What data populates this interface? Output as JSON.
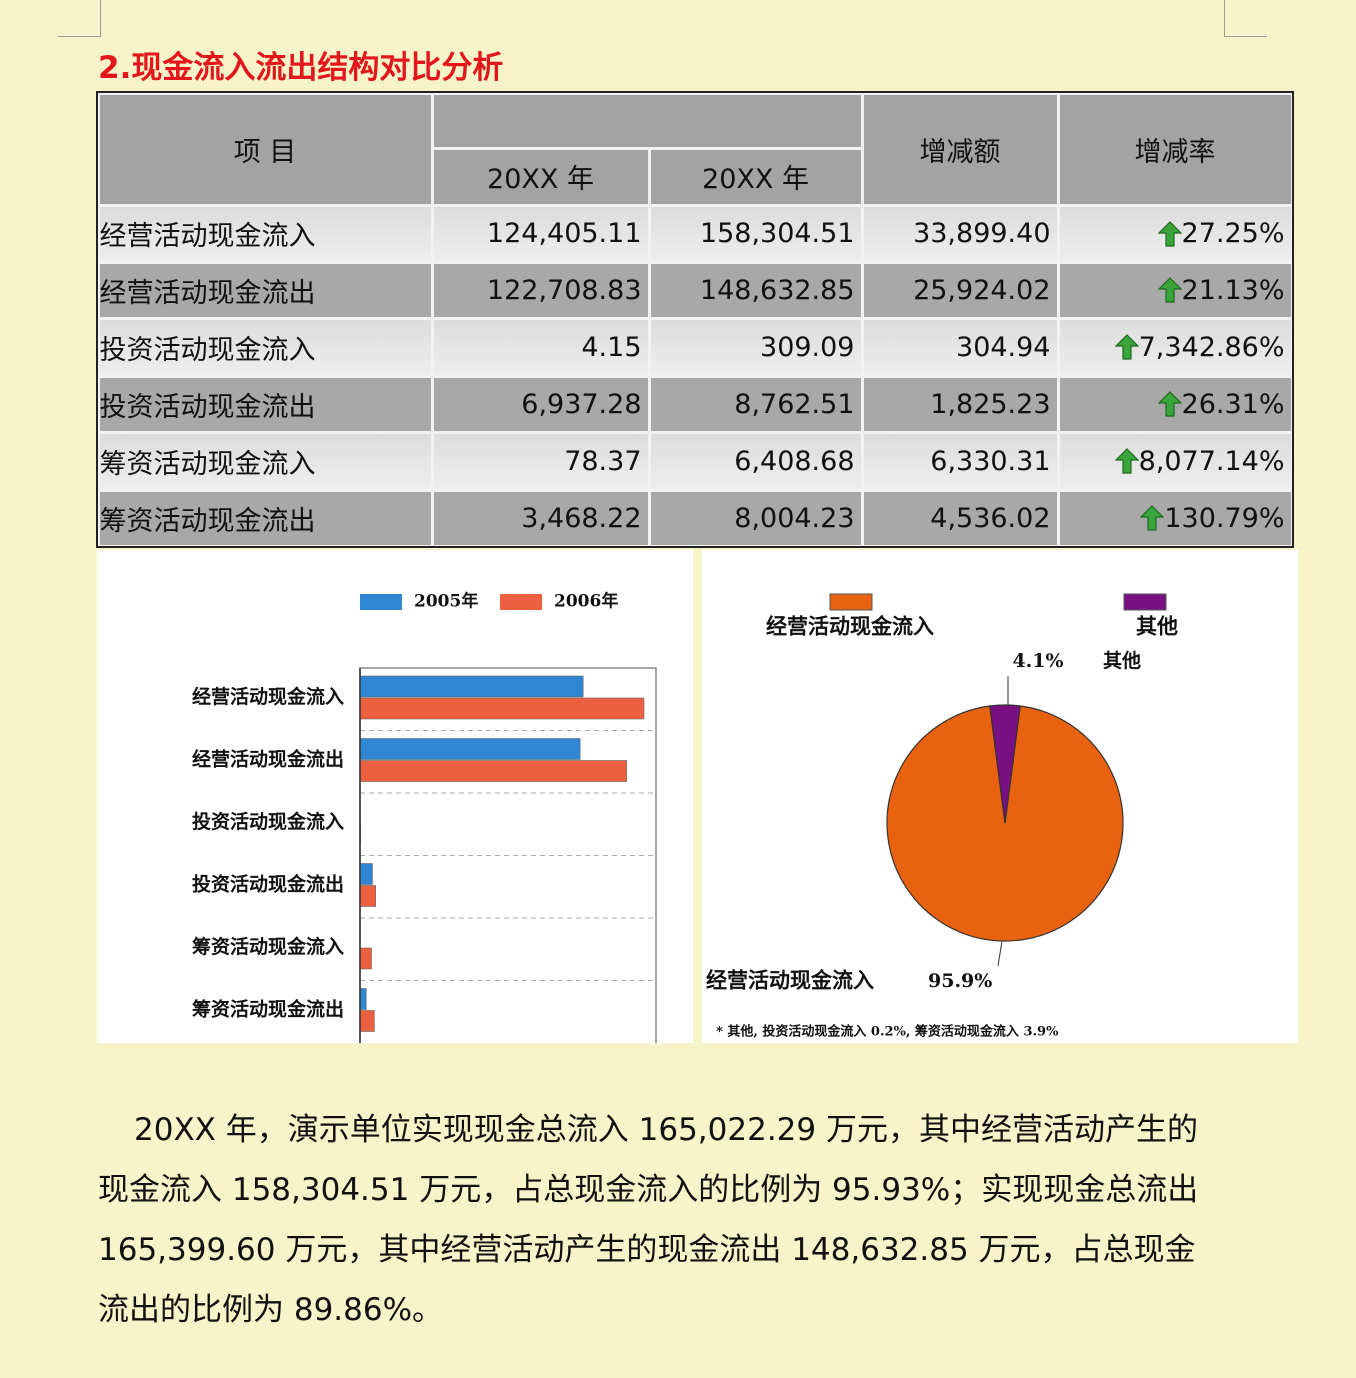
{
  "title": "2.现金流入流出结构对比分析",
  "table": {
    "header": {
      "item": "项 目",
      "years": [
        "20XX 年",
        "20XX 年"
      ],
      "change": "增减额",
      "rate": "增减率"
    },
    "rows": [
      [
        "经营活动现金流入",
        "124,405.11",
        "158,304.51",
        "33,899.40",
        "27.25%"
      ],
      [
        "经营活动现金流出",
        "122,708.83",
        "148,632.85",
        "25,924.02",
        "21.13%"
      ],
      [
        "投资活动现金流入",
        "4.15",
        "309.09",
        "304.94",
        "7,342.86%"
      ],
      [
        "投资活动现金流出",
        "6,937.28",
        "8,762.51",
        "1,825.23",
        "26.31%"
      ],
      [
        "筹资活动现金流入",
        "78.37",
        "6,408.68",
        "6,330.31",
        "8,077.14%"
      ],
      [
        "筹资活动现金流出",
        "3,468.22",
        "8,004.23",
        "4,536.02",
        "130.79%"
      ]
    ]
  },
  "chart_data": [
    {
      "type": "bar",
      "categories": [
        "经营活动现金流入",
        "经营活动现金流出",
        "投资活动现金流入",
        "投资活动现金流出",
        "筹资活动现金流入",
        "筹资活动现金流出"
      ],
      "series": [
        {
          "name": "2005年",
          "color": "#2f86d2",
          "values": [
            124405.11,
            122708.83,
            4.15,
            6937.28,
            78.37,
            3468.22
          ]
        },
        {
          "name": "2006年",
          "color": "#ec5f3f",
          "values": [
            158304.51,
            148632.85,
            309.09,
            8762.51,
            6408.68,
            8004.23
          ]
        }
      ],
      "xlim": [
        0,
        165000
      ]
    },
    {
      "type": "pie",
      "categories": [
        "经营活动现金流入",
        "其他"
      ],
      "values": [
        95.9,
        4.1
      ],
      "value_labels": [
        "95.9%",
        "4.1%"
      ],
      "colors": [
        "#e8620f",
        "#7a0f84"
      ],
      "note": "* 其他, 投资活动现金流入 0.2%, 筹资活动现金流入 3.9%"
    }
  ],
  "paragraph": "20XX 年，演示单位实现现金总流入 165,022.29 万元，其中经营活动产生的现金流入 158,304.51 万元，占总现金流入的比例为 95.93%；实现现金总流出 165,399.60 万元，其中经营活动产生的现金流出 148,632.85 万元，占总现金流出的比例为 89.86%。"
}
